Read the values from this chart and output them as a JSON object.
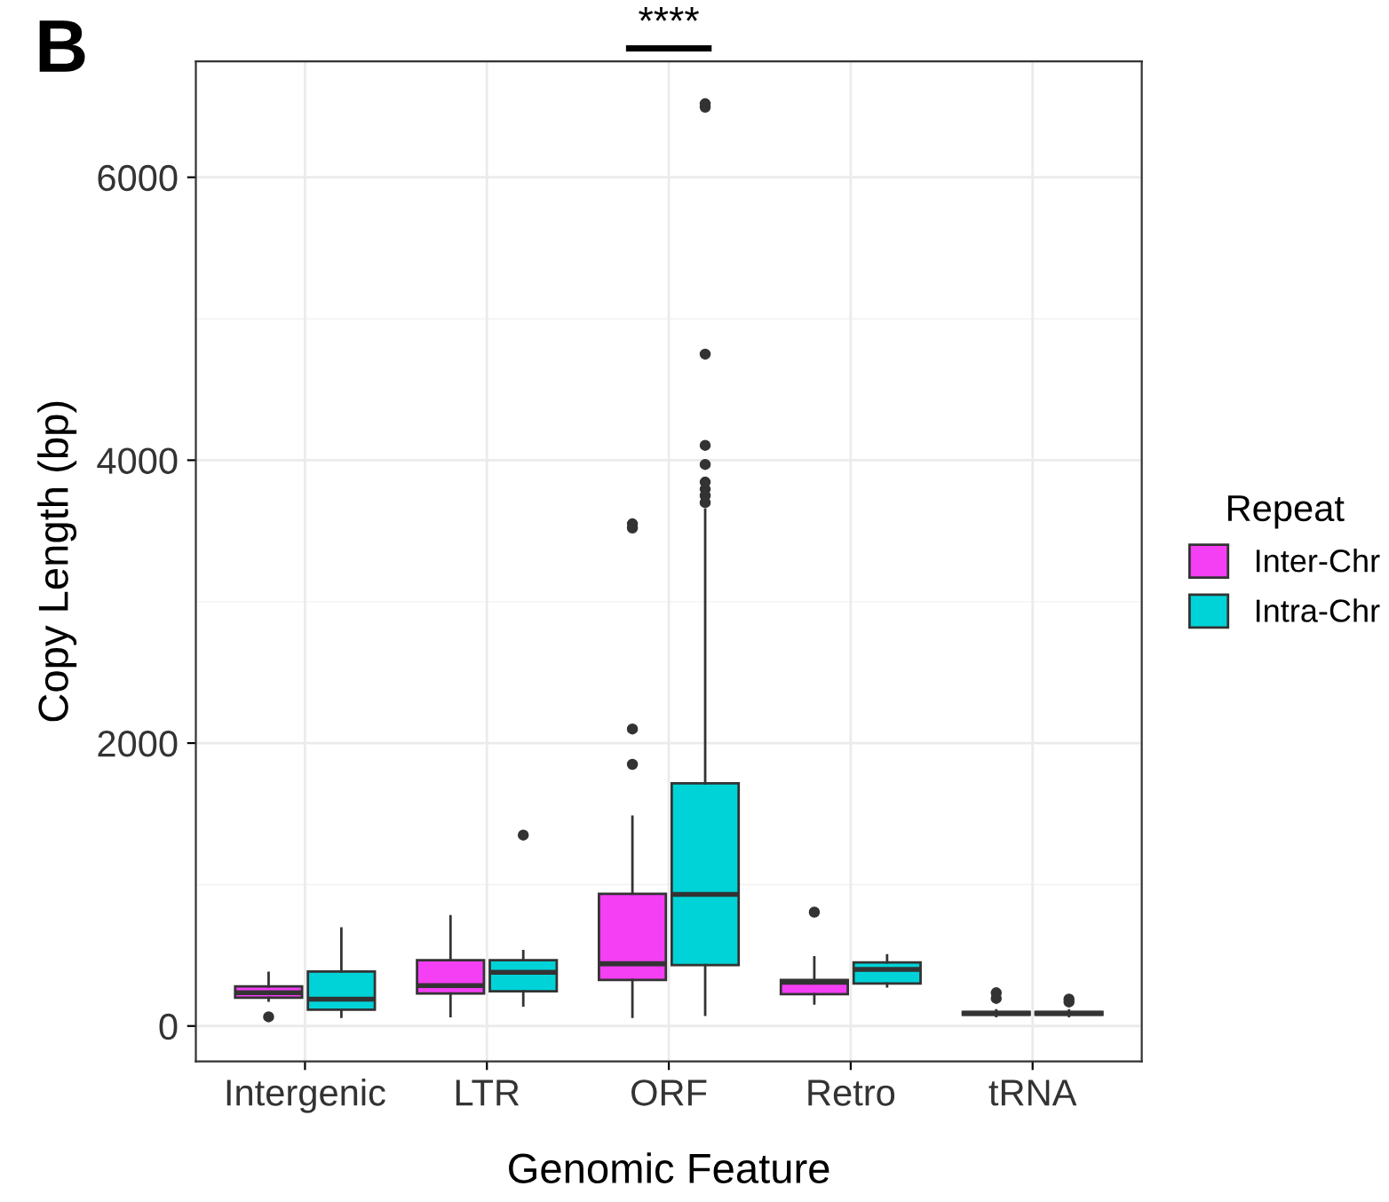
{
  "chart_data": {
    "type": "box",
    "xlabel": "Genomic Feature",
    "ylabel": "Copy Length (bp)",
    "legend_title": "Repeat",
    "legend": "right",
    "grid": true,
    "categories": [
      "Intergenic",
      "LTR",
      "ORF",
      "Retro",
      "tRNA"
    ],
    "ylim": [
      -250,
      6820
    ],
    "yticks": [
      0,
      {
        "value": 1000,
        "label": null
      },
      2000,
      {
        "value": 3000,
        "label": null
      },
      4000,
      {
        "value": 5000,
        "label": null
      },
      6000
    ],
    "annotations": [
      "B",
      "****"
    ],
    "series": [
      {
        "name": "Inter-Chr",
        "color": "#f43ff5",
        "boxes": [
          {
            "low": 180,
            "q1": 200,
            "median": 235,
            "q3": 280,
            "high": 375,
            "outliers": [
              65
            ]
          },
          {
            "low": 70,
            "q1": 230,
            "median": 285,
            "q3": 465,
            "high": 775
          },
          {
            "low": 65,
            "q1": 325,
            "median": 440,
            "q3": 935,
            "high": 1480,
            "outliers": [
              1850,
              2100,
              3520,
              3550
            ]
          },
          {
            "low": 160,
            "q1": 225,
            "median": 310,
            "q3": 325,
            "high": 485,
            "outliers": [
              805
            ]
          },
          {
            "low": 70,
            "q1": 80,
            "median": 90,
            "q3": 100,
            "high": 110,
            "outliers": [
              195,
              235
            ]
          }
        ]
      },
      {
        "name": "Intra-Chr",
        "color": "#00d3d8",
        "boxes": [
          {
            "low": 65,
            "q1": 115,
            "median": 190,
            "q3": 385,
            "high": 690
          },
          {
            "low": 145,
            "q1": 245,
            "median": 380,
            "q3": 465,
            "high": 530,
            "outliers": [
              1350
            ]
          },
          {
            "low": 80,
            "q1": 430,
            "median": 930,
            "q3": 1715,
            "high": 3650,
            "outliers": [
              3700,
              3750,
              3795,
              3845,
              3970,
              4105,
              4750,
              6495,
              6520
            ]
          },
          {
            "low": 280,
            "q1": 300,
            "median": 400,
            "q3": 450,
            "high": 500
          },
          {
            "low": 70,
            "q1": 80,
            "median": 90,
            "q3": 100,
            "high": 110,
            "outliers": [
              170,
              190
            ]
          }
        ]
      }
    ]
  }
}
